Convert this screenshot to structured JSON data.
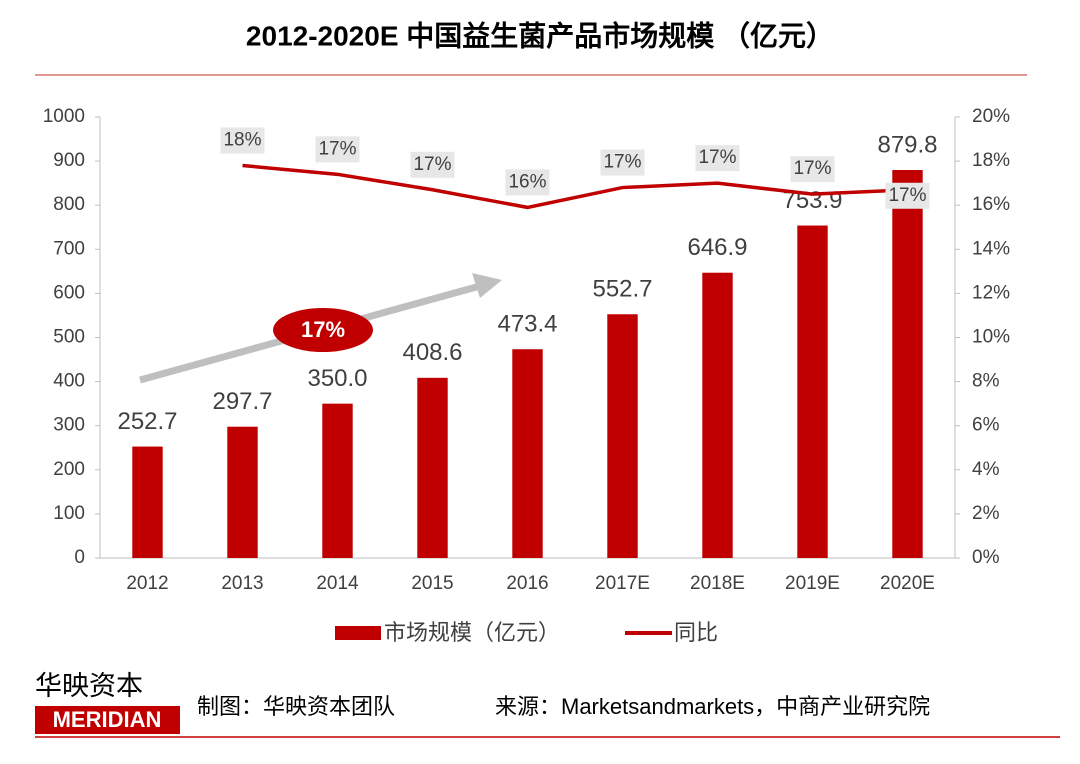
{
  "chart_data": {
    "type": "bar-line",
    "title": "2012-2020E 中国益生菌产品市场规模 （亿元）",
    "categories": [
      "2012",
      "2013",
      "2014",
      "2015",
      "2016",
      "2017E",
      "2018E",
      "2019E",
      "2020E"
    ],
    "series": [
      {
        "name": "市场规模（亿元）",
        "color": "#c00000",
        "type": "bar",
        "values": [
          252.7,
          297.7,
          350.0,
          408.6,
          473.4,
          552.7,
          646.9,
          753.9,
          879.8
        ],
        "value_labels": [
          "252.7",
          "297.7",
          "350.0",
          "408.6",
          "473.4",
          "552.7",
          "646.9",
          "753.9",
          "879.8"
        ]
      },
      {
        "name": "同比",
        "color": "#c00000",
        "type": "line",
        "axis": "y2",
        "values": [
          null,
          17.8,
          17.4,
          16.7,
          15.9,
          16.8,
          17.0,
          16.5,
          16.7
        ],
        "value_labels": [
          null,
          "18%",
          "17%",
          "17%",
          "16%",
          "17%",
          "17%",
          "17%",
          "17%"
        ]
      }
    ],
    "ylim": [
      0,
      1000
    ],
    "yticks": [
      0,
      100,
      200,
      300,
      400,
      500,
      600,
      700,
      800,
      900,
      1000
    ],
    "y2lim": [
      0,
      20
    ],
    "y2ticks": [
      {
        "value": 0,
        "label": "0%"
      },
      {
        "value": 2,
        "label": "2%"
      },
      {
        "value": 4,
        "label": "4%"
      },
      {
        "value": 6,
        "label": "6%"
      },
      {
        "value": 8,
        "label": "8%"
      },
      {
        "value": 10,
        "label": "10%"
      },
      {
        "value": 12,
        "label": "12%"
      },
      {
        "value": 14,
        "label": "14%"
      },
      {
        "value": 16,
        "label": "16%"
      },
      {
        "value": 18,
        "label": "18%"
      },
      {
        "value": 20,
        "label": "20%"
      }
    ],
    "annotation": "17%",
    "legend": "bottom",
    "footer": {
      "logo_cn": "华映资本",
      "logo_en": "MERIDIAN",
      "credit": "制图：华映资本团队",
      "source": "来源：Marketsandmarkets，中商产业研究院"
    }
  }
}
